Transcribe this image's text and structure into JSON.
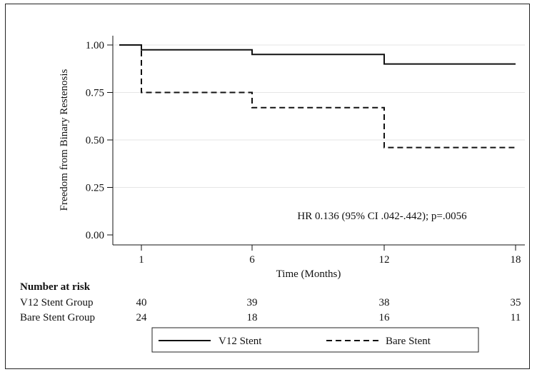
{
  "chart_data": {
    "type": "line",
    "step": true,
    "xlabel": "Time (Months)",
    "ylabel": "Freedom from Binary Restenosis",
    "x_ticks": [
      1,
      6,
      12,
      18
    ],
    "y_ticks": [
      "0.00",
      "0.25",
      "0.50",
      "0.75",
      "1.00"
    ],
    "xlim": [
      0,
      18
    ],
    "ylim": [
      0,
      1
    ],
    "grid": "horizontal",
    "annotation": "HR 0.136 (95% CI .042-.442); p=.0056",
    "legend_position": "bottom",
    "series": [
      {
        "name": "V12 Stent",
        "line_style": "solid",
        "color": "#111111",
        "points": [
          [
            0,
            1.0
          ],
          [
            1,
            1.0
          ],
          [
            1,
            0.975
          ],
          [
            6,
            0.975
          ],
          [
            6,
            0.95
          ],
          [
            12,
            0.95
          ],
          [
            12,
            0.9
          ],
          [
            18,
            0.9
          ]
        ]
      },
      {
        "name": "Bare Stent",
        "line_style": "dashed",
        "color": "#111111",
        "points": [
          [
            0,
            1.0
          ],
          [
            1,
            1.0
          ],
          [
            1,
            0.75
          ],
          [
            6,
            0.75
          ],
          [
            6,
            0.67
          ],
          [
            12,
            0.67
          ],
          [
            12,
            0.46
          ],
          [
            18,
            0.46
          ]
        ]
      }
    ],
    "risk_table": {
      "title": "Number at risk",
      "rows": [
        {
          "label": "V12 Stent Group",
          "values": [
            "40",
            "39",
            "38",
            "35"
          ]
        },
        {
          "label": "Bare Stent Group",
          "values": [
            "24",
            "18",
            "16",
            "11"
          ]
        }
      ]
    }
  }
}
